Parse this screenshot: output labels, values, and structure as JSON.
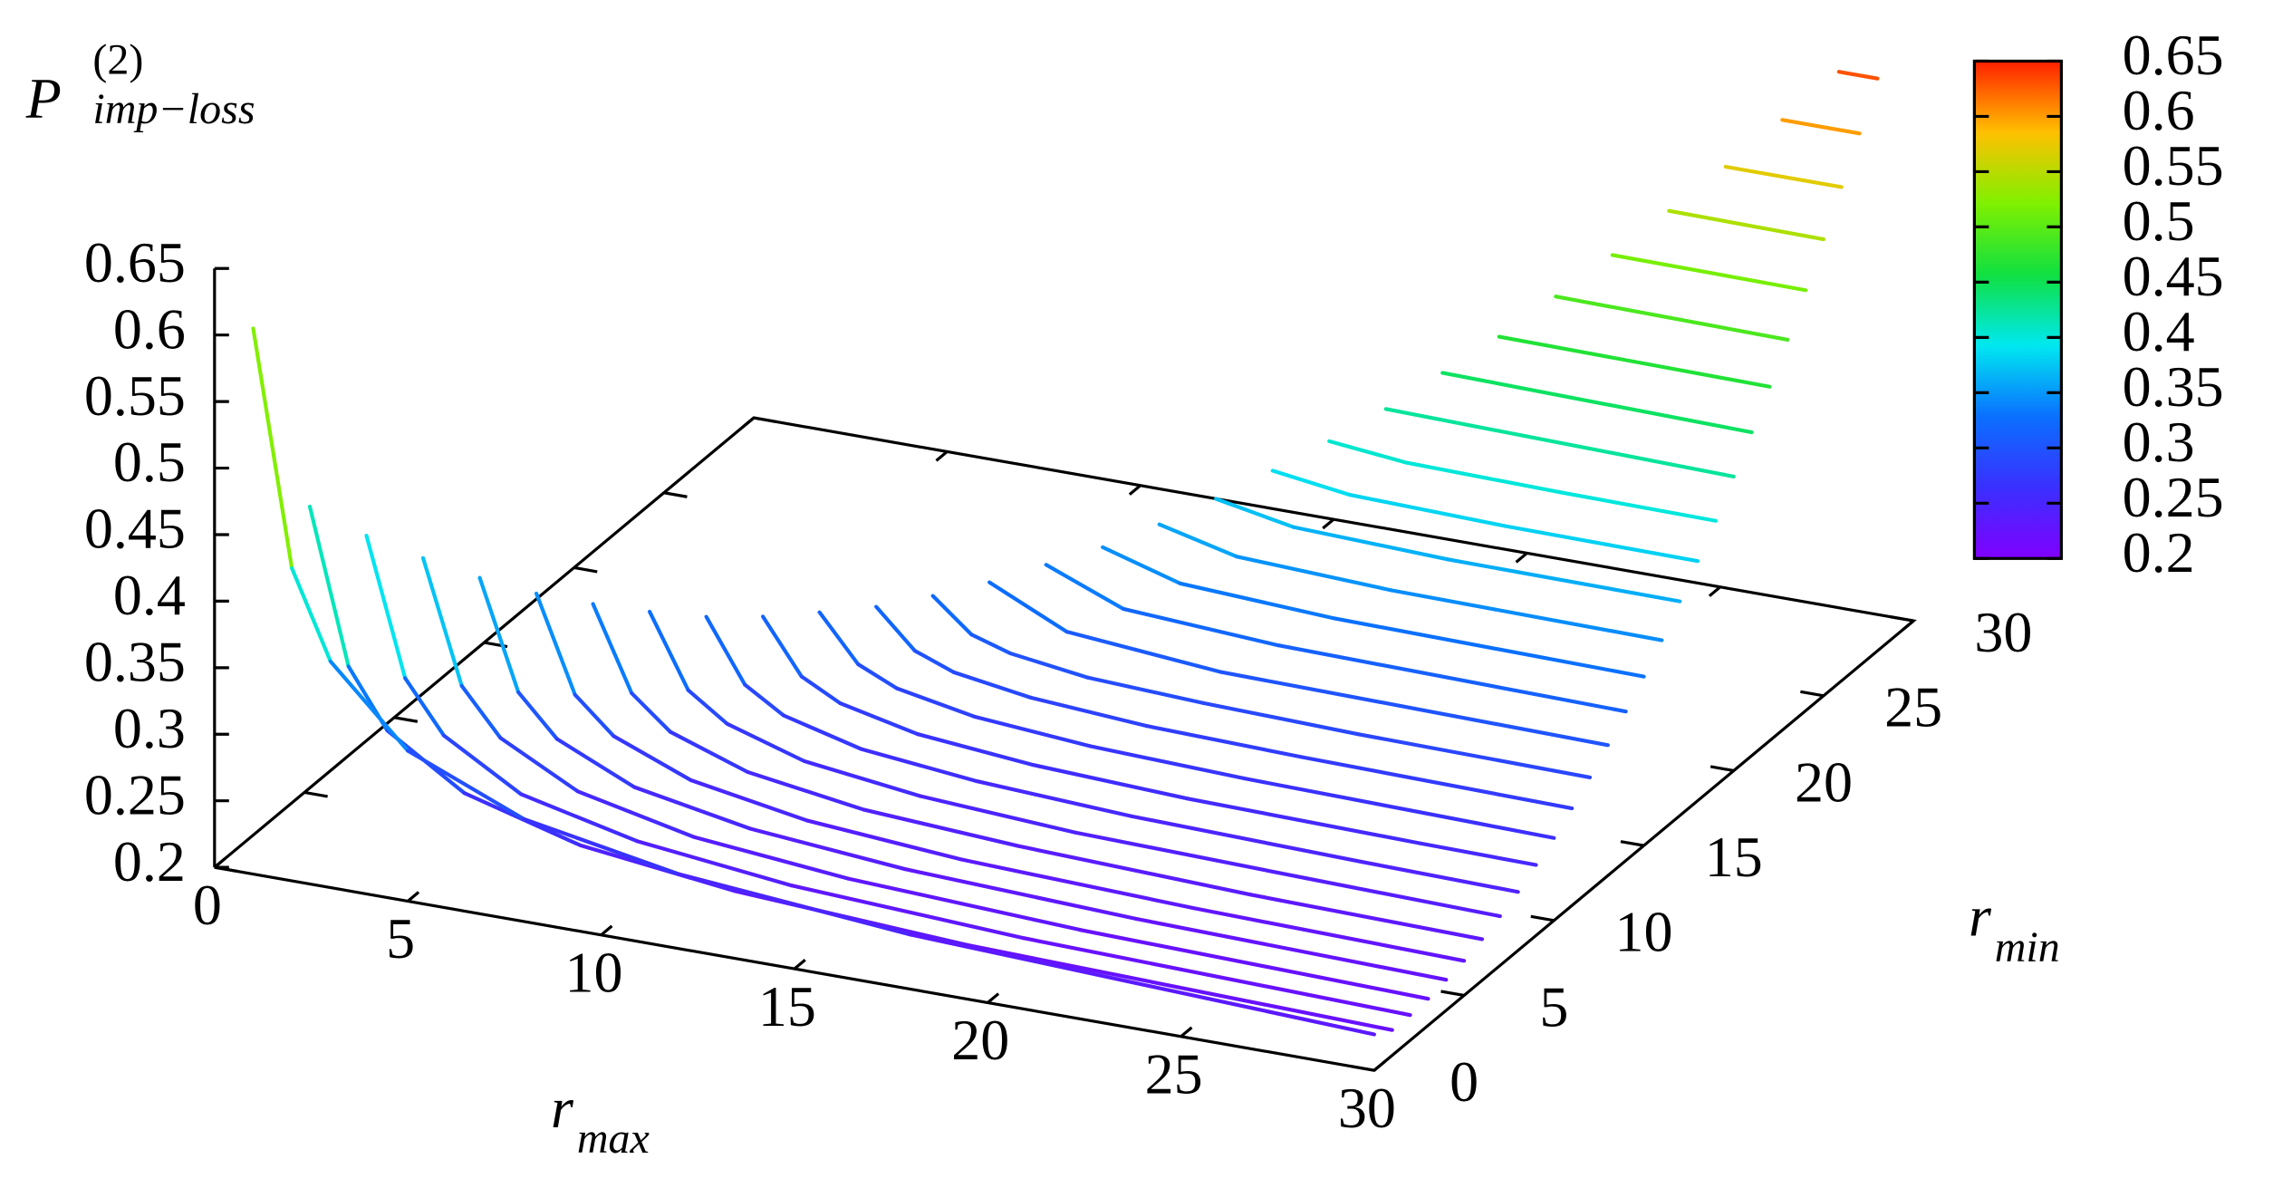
{
  "chart_data": {
    "type": "line3d",
    "zlabel": {
      "base": "P",
      "sup": "(2)",
      "sub": "imp−loss"
    },
    "xlabel": {
      "base": "r",
      "sub": "max"
    },
    "ylabel": {
      "base": "r",
      "sub": "min"
    },
    "xlim": [
      0,
      30
    ],
    "xticks": [
      0,
      5,
      10,
      15,
      20,
      25,
      30
    ],
    "ylim": [
      0,
      30
    ],
    "yticks": [
      0,
      5,
      10,
      15,
      20,
      25,
      30
    ],
    "zlim": [
      0.2,
      0.65
    ],
    "zticks": [
      0.2,
      0.25,
      0.3,
      0.35,
      0.4,
      0.45,
      0.5,
      0.55,
      0.6,
      0.65
    ],
    "cblim": [
      0.2,
      0.65
    ],
    "cbticks": [
      0.2,
      0.25,
      0.3,
      0.35,
      0.4,
      0.45,
      0.5,
      0.55,
      0.6,
      0.65
    ],
    "palette": [
      "#8000ff",
      "#3a30ff",
      "#0a70ff",
      "#00e8f0",
      "#10e040",
      "#80f000",
      "#ffc000",
      "#ff2000"
    ],
    "series": [
      {
        "y": 0,
        "x": [
          1,
          2,
          3,
          5,
          8,
          12,
          18,
          30
        ],
        "values": [
          0.61,
          0.435,
          0.37,
          0.313,
          0.277,
          0.256,
          0.241,
          0.227
        ]
      },
      {
        "y": 1,
        "x": [
          2,
          3,
          4,
          6,
          9,
          13,
          19,
          30
        ],
        "values": [
          0.47,
          0.355,
          0.312,
          0.275,
          0.251,
          0.237,
          0.227,
          0.219
        ]
      },
      {
        "y": 2,
        "x": [
          3,
          4,
          5,
          7,
          10,
          14,
          20,
          30
        ],
        "values": [
          0.442,
          0.34,
          0.302,
          0.268,
          0.248,
          0.235,
          0.226,
          0.219
        ]
      },
      {
        "y": 3,
        "x": [
          4,
          5,
          6,
          8,
          11,
          15,
          21,
          30
        ],
        "values": [
          0.419,
          0.328,
          0.294,
          0.264,
          0.245,
          0.234,
          0.226,
          0.22
        ]
      },
      {
        "y": 4,
        "x": [
          5,
          6,
          7,
          9,
          12,
          16,
          22,
          30
        ],
        "values": [
          0.398,
          0.317,
          0.287,
          0.261,
          0.245,
          0.235,
          0.228,
          0.223
        ]
      },
      {
        "y": 5,
        "x": [
          6,
          7,
          8,
          10,
          13,
          17,
          23,
          30
        ],
        "values": [
          0.38,
          0.309,
          0.283,
          0.26,
          0.245,
          0.236,
          0.23,
          0.226
        ]
      },
      {
        "y": 6,
        "x": [
          7,
          8,
          9,
          11,
          14,
          18,
          24,
          30
        ],
        "values": [
          0.366,
          0.304,
          0.28,
          0.26,
          0.247,
          0.24,
          0.234,
          0.231
        ]
      },
      {
        "y": 7,
        "x": [
          8,
          9,
          10,
          12,
          15,
          19,
          25,
          30
        ],
        "values": [
          0.354,
          0.3,
          0.28,
          0.262,
          0.251,
          0.244,
          0.24,
          0.237
        ]
      },
      {
        "y": 8,
        "x": [
          9,
          10,
          11,
          13,
          16,
          20,
          26,
          30
        ],
        "values": [
          0.344,
          0.298,
          0.28,
          0.265,
          0.256,
          0.25,
          0.246,
          0.244
        ]
      },
      {
        "y": 9,
        "x": [
          10,
          11,
          12,
          14,
          17,
          21,
          27,
          30
        ],
        "values": [
          0.338,
          0.298,
          0.283,
          0.27,
          0.262,
          0.257,
          0.254,
          0.253
        ]
      },
      {
        "y": 10,
        "x": [
          11,
          12,
          13,
          15,
          18,
          22,
          28,
          30
        ],
        "values": [
          0.335,
          0.301,
          0.288,
          0.277,
          0.27,
          0.266,
          0.263,
          0.262
        ]
      },
      {
        "y": 11,
        "x": [
          12,
          13,
          14,
          16,
          19,
          23,
          30
        ],
        "values": [
          0.333,
          0.305,
          0.294,
          0.285,
          0.279,
          0.276,
          0.273
        ]
      },
      {
        "y": 12,
        "x": [
          13,
          14,
          15,
          17,
          20,
          24,
          30
        ],
        "values": [
          0.335,
          0.311,
          0.302,
          0.294,
          0.29,
          0.287,
          0.285
        ]
      },
      {
        "y": 13,
        "x": [
          14,
          16,
          20,
          30
        ],
        "values": [
          0.339,
          0.312,
          0.302,
          0.298
        ]
      },
      {
        "y": 14,
        "x": [
          15,
          17,
          21,
          30
        ],
        "values": [
          0.346,
          0.323,
          0.316,
          0.312
        ]
      },
      {
        "y": 15,
        "x": [
          16,
          18,
          22,
          30
        ],
        "values": [
          0.353,
          0.336,
          0.33,
          0.327
        ]
      },
      {
        "y": 16,
        "x": [
          17,
          19,
          23,
          30
        ],
        "values": [
          0.364,
          0.35,
          0.345,
          0.343
        ]
      },
      {
        "y": 17,
        "x": [
          18,
          20,
          24,
          30
        ],
        "values": [
          0.377,
          0.366,
          0.362,
          0.361
        ]
      },
      {
        "y": 18,
        "x": [
          19,
          21,
          25,
          30
        ],
        "values": [
          0.392,
          0.384,
          0.381,
          0.38
        ]
      },
      {
        "y": 19,
        "x": [
          20,
          22,
          26,
          30
        ],
        "values": [
          0.408,
          0.402,
          0.4,
          0.399
        ]
      },
      {
        "y": 20,
        "x": [
          21,
          30
        ],
        "values": [
          0.426,
          0.421
        ]
      },
      {
        "y": 21,
        "x": [
          22,
          30
        ],
        "values": [
          0.447,
          0.443
        ]
      },
      {
        "y": 22,
        "x": [
          23,
          30
        ],
        "values": [
          0.468,
          0.466
        ]
      },
      {
        "y": 23,
        "x": [
          24,
          30
        ],
        "values": [
          0.492,
          0.49
        ]
      },
      {
        "y": 24,
        "x": [
          25,
          30
        ],
        "values": [
          0.517,
          0.516
        ]
      },
      {
        "y": 25,
        "x": [
          26,
          30
        ],
        "values": [
          0.544,
          0.543
        ]
      },
      {
        "y": 26,
        "x": [
          27,
          30
        ],
        "values": [
          0.571,
          0.571
        ]
      },
      {
        "y": 27,
        "x": [
          28,
          30
        ],
        "values": [
          0.6,
          0.6
        ]
      },
      {
        "y": 28,
        "x": [
          29,
          30
        ],
        "values": [
          0.63,
          0.63
        ]
      }
    ]
  }
}
